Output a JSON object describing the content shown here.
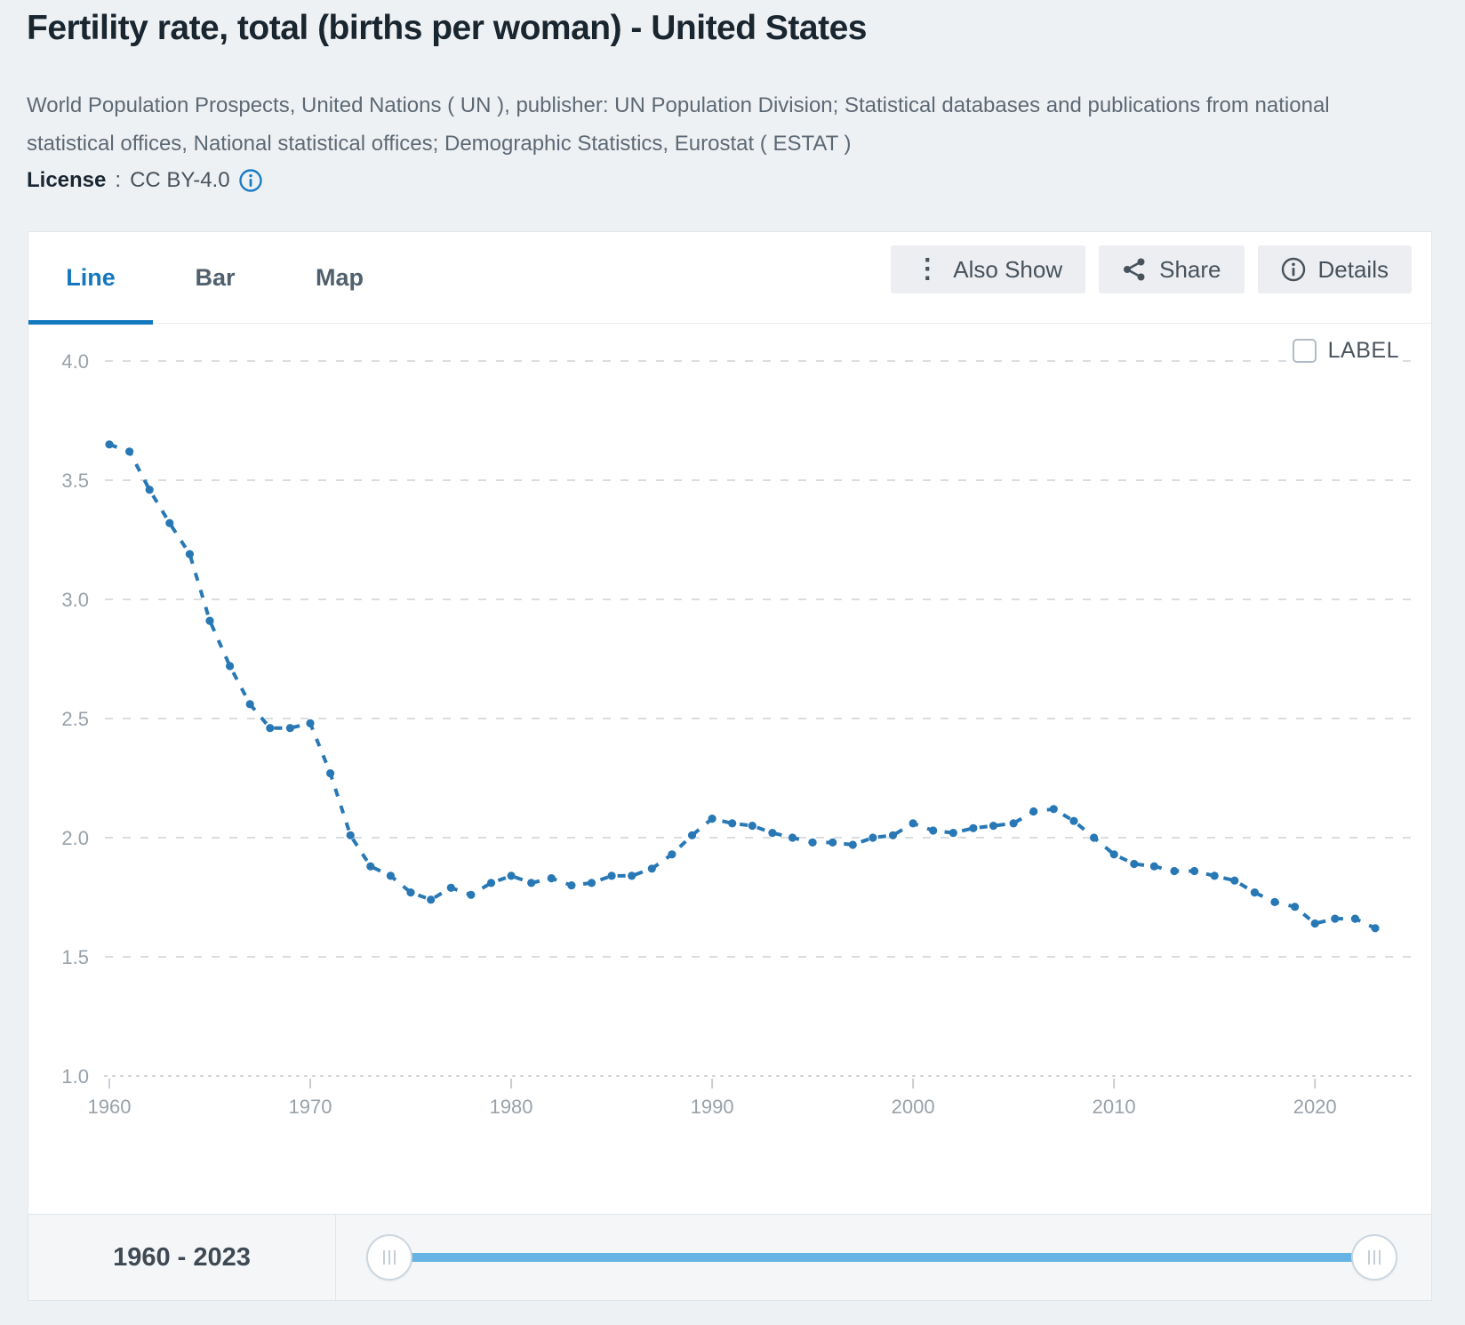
{
  "page": {
    "title": "Fertility rate, total (births per woman) - United States",
    "source": "World Population Prospects, United Nations ( UN ), publisher: UN Population Division; Statistical databases and publications from national statistical offices, National statistical offices; Demographic Statistics, Eurostat ( ESTAT )",
    "license": {
      "label": "License",
      "separator": ":",
      "value": "CC BY-4.0"
    }
  },
  "tabs": [
    {
      "label": "Line",
      "active": true
    },
    {
      "label": "Bar",
      "active": false
    },
    {
      "label": "Map",
      "active": false
    }
  ],
  "toolbar": [
    {
      "label": "Also Show",
      "icon": "kebab-icon"
    },
    {
      "label": "Share",
      "icon": "share-icon"
    },
    {
      "label": "Details",
      "icon": "info-icon"
    }
  ],
  "chart": {
    "label_checkbox_text": "LABEL",
    "label_checkbox_checked": false
  },
  "chart_data": {
    "type": "line",
    "title": "Fertility rate, total (births per woman) - United States",
    "xlabel": "",
    "ylabel": "births per woman",
    "x": [
      1960,
      1961,
      1962,
      1963,
      1964,
      1965,
      1966,
      1967,
      1968,
      1969,
      1970,
      1971,
      1972,
      1973,
      1974,
      1975,
      1976,
      1977,
      1978,
      1979,
      1980,
      1981,
      1982,
      1983,
      1984,
      1985,
      1986,
      1987,
      1988,
      1989,
      1990,
      1991,
      1992,
      1993,
      1994,
      1995,
      1996,
      1997,
      1998,
      1999,
      2000,
      2001,
      2002,
      2003,
      2004,
      2005,
      2006,
      2007,
      2008,
      2009,
      2010,
      2011,
      2012,
      2013,
      2014,
      2015,
      2016,
      2017,
      2018,
      2019,
      2020,
      2021,
      2022,
      2023
    ],
    "values": [
      3.65,
      3.62,
      3.46,
      3.32,
      3.19,
      2.91,
      2.72,
      2.56,
      2.46,
      2.46,
      2.48,
      2.27,
      2.01,
      1.88,
      1.84,
      1.77,
      1.74,
      1.79,
      1.76,
      1.81,
      1.84,
      1.81,
      1.83,
      1.8,
      1.81,
      1.84,
      1.84,
      1.87,
      1.93,
      2.01,
      2.08,
      2.06,
      2.05,
      2.02,
      2.0,
      1.98,
      1.98,
      1.97,
      2.0,
      2.01,
      2.06,
      2.03,
      2.02,
      2.04,
      2.05,
      2.06,
      2.11,
      2.12,
      2.07,
      2.0,
      1.93,
      1.89,
      1.88,
      1.86,
      1.86,
      1.84,
      1.82,
      1.77,
      1.73,
      1.71,
      1.64,
      1.66,
      1.66,
      1.62
    ],
    "ylim": [
      1.0,
      4.0
    ],
    "xlim": [
      1960,
      2023
    ],
    "yticks": [
      4.0,
      3.5,
      3.0,
      2.5,
      2.0,
      1.5,
      1.0
    ],
    "xticks": [
      1960,
      1970,
      1980,
      1990,
      2000,
      2010,
      2020
    ],
    "grid": "horizontal-dashed",
    "legend": "none",
    "line_style": "dashed-with-dots",
    "line_color": "#2878b5",
    "gridline_color": "#dadddf",
    "tick_label_color": "#99a1a9"
  },
  "range": {
    "label": "1960 - 2023",
    "slider_track_color": "#67b4e4"
  }
}
